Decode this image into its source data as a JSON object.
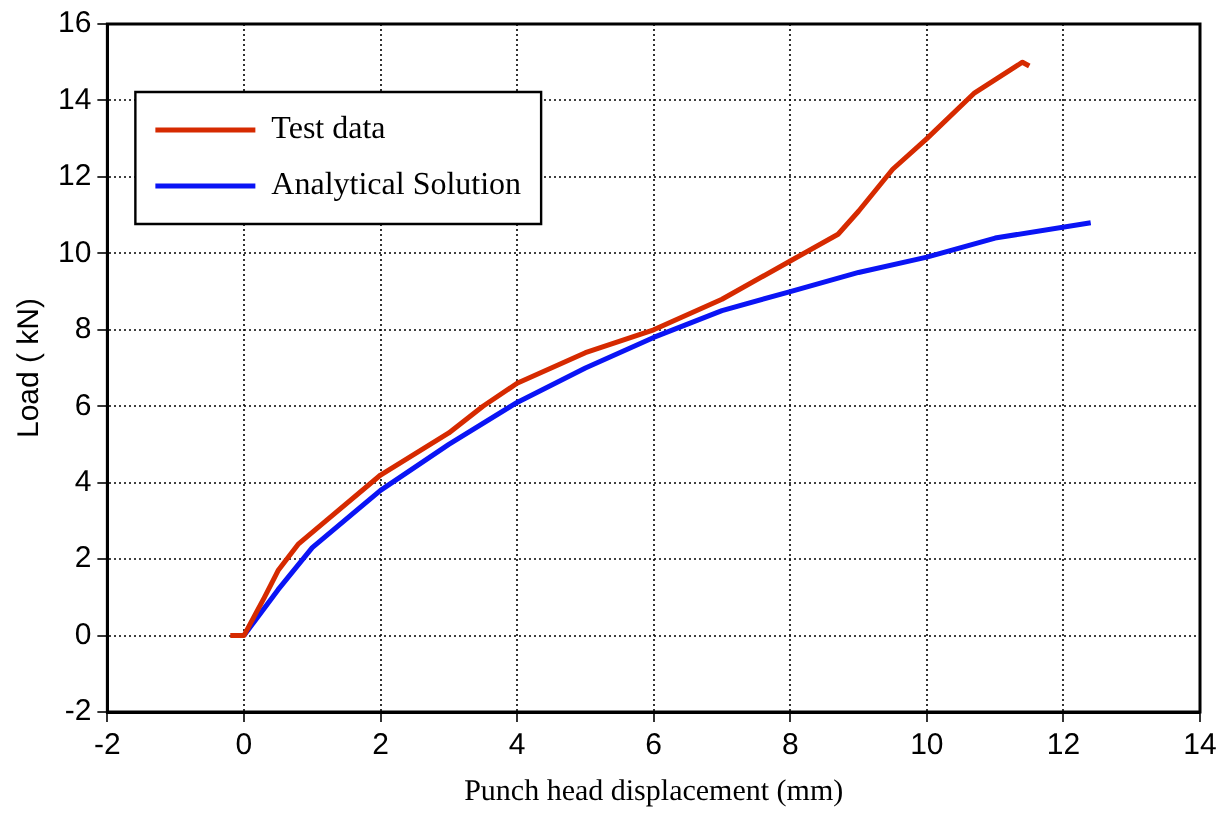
{
  "chart_data": {
    "type": "line",
    "xlabel": "Punch head displacement (mm)",
    "ylabel": "Load ( kN)",
    "xlim": [
      -2,
      14
    ],
    "xticks": [
      -2,
      0,
      2,
      4,
      6,
      8,
      10,
      12,
      14
    ],
    "ylim": [
      -2,
      16
    ],
    "yticks": [
      -2,
      0,
      2,
      4,
      6,
      8,
      10,
      12,
      14,
      16
    ],
    "grid": true,
    "legend": "top left",
    "marker": "none",
    "line_style": "solid",
    "series": [
      {
        "name": "Test data",
        "color": "#d62a00",
        "x": [
          -0.2,
          0,
          0.3,
          0.5,
          0.8,
          1.2,
          2,
          3,
          3.5,
          4,
          5,
          6,
          7,
          8,
          8.7,
          9,
          9.5,
          10,
          10.7,
          11.4,
          11.5
        ],
        "values": [
          0,
          0,
          1,
          1.7,
          2.4,
          3,
          4.2,
          5.3,
          6,
          6.6,
          7.4,
          8,
          8.8,
          9.8,
          10.5,
          11.1,
          12.2,
          13,
          14.2,
          15,
          14.9
        ]
      },
      {
        "name": "Analytical Solution",
        "color": "#0a14f5",
        "x": [
          0,
          0.5,
          1,
          2,
          3,
          4,
          5,
          6,
          7,
          8,
          9,
          10,
          11,
          12.4
        ],
        "values": [
          0,
          1.2,
          2.3,
          3.8,
          5,
          6.1,
          7,
          7.8,
          8.5,
          9,
          9.5,
          9.9,
          10.4,
          10.8
        ]
      }
    ]
  }
}
